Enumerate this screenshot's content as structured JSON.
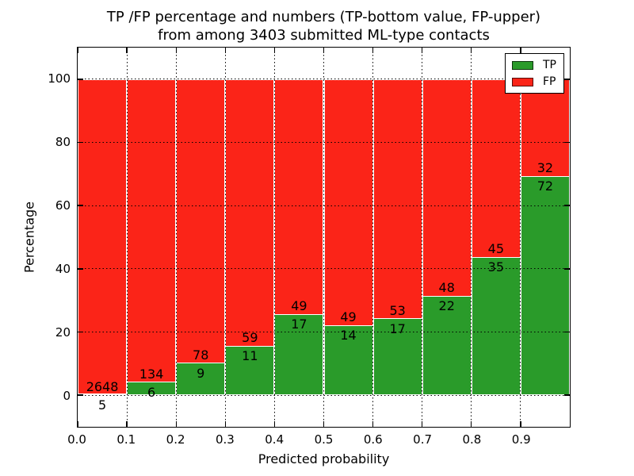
{
  "figure": {
    "title_line1": "TP /FP percentage and numbers (TP-bottom value, FP-upper)",
    "title_line2": "from among 3403 submitted ML-type contacts"
  },
  "chart_data": {
    "type": "bar",
    "stacked": true,
    "normalized_to_percent": true,
    "title": "TP /FP percentage and numbers (TP-bottom value, FP-upper) from among 3403 submitted ML-type contacts",
    "xlabel": "Predicted probability",
    "ylabel": "Percentage",
    "x_tick_labels": [
      "0.0",
      "0.1",
      "0.2",
      "0.3",
      "0.4",
      "0.5",
      "0.6",
      "0.7",
      "0.8",
      "0.9"
    ],
    "y_ticks": [
      0,
      20,
      40,
      60,
      80,
      100
    ],
    "xlim": [
      0.0,
      1.0
    ],
    "ylim": [
      -10,
      110
    ],
    "grid": "dotted black, on",
    "legend_position": "upper right",
    "legend": [
      {
        "label": "TP"
      },
      {
        "label": "FP"
      }
    ],
    "colors": {
      "tp": "#2a9b2a",
      "fp": "#fb2418",
      "bar_edge": "#ffffff",
      "text": "#000000",
      "background": "#ffffff"
    },
    "bins": [
      "0.0-0.1",
      "0.1-0.2",
      "0.2-0.3",
      "0.3-0.4",
      "0.4-0.5",
      "0.5-0.6",
      "0.6-0.7",
      "0.7-0.8",
      "0.8-0.9",
      "0.9-1.0"
    ],
    "series": [
      {
        "name": "TP",
        "counts": [
          5,
          6,
          9,
          11,
          17,
          14,
          17,
          22,
          35,
          72
        ]
      },
      {
        "name": "FP",
        "counts": [
          2648,
          134,
          78,
          59,
          49,
          49,
          53,
          48,
          45,
          32
        ]
      }
    ],
    "tp_height_percent": [
      0.19,
      4.29,
      10.34,
      15.71,
      25.76,
      22.22,
      24.29,
      31.43,
      43.75,
      69.23
    ],
    "total_contacts": 3403
  }
}
